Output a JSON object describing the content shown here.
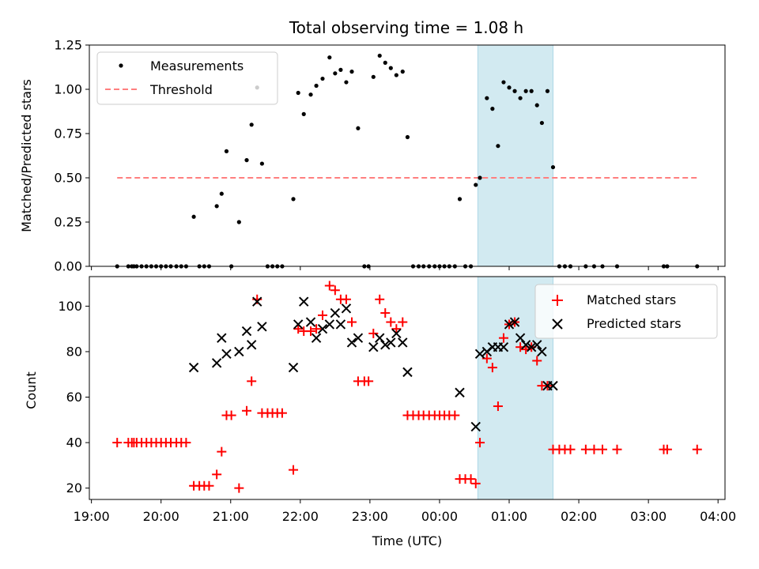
{
  "figure": {
    "title": "Total observing time = 1.08 h",
    "xlabel": "Time (UTC)",
    "xticks": [
      "19:00",
      "20:00",
      "21:00",
      "22:00",
      "23:00",
      "00:00",
      "01:00",
      "02:00",
      "03:00",
      "04:00"
    ]
  },
  "chart_data": [
    {
      "type": "scatter",
      "ylabel": "Matched/Predicted stars",
      "ylim": [
        0,
        1.25
      ],
      "yticks": [
        "0.00",
        "0.25",
        "0.50",
        "0.75",
        "1.00",
        "1.25"
      ],
      "x_unit": "hours after 19:00 UTC",
      "xlim": [
        -0.03,
        9.1
      ],
      "shaded_interval": [
        5.55,
        6.63
      ],
      "colors": {
        "shade": "#add8e6",
        "measurements": "#000000",
        "threshold": "#ff7f7f"
      },
      "legend": {
        "position": "upper-left",
        "entries": [
          "Measurements",
          "Threshold"
        ]
      },
      "threshold": {
        "name": "Threshold",
        "x": [
          0.37,
          8.7
        ],
        "y": 0.5
      },
      "series": [
        {
          "name": "Measurements",
          "points": [
            [
              0.37,
              0
            ],
            [
              0.53,
              0
            ],
            [
              0.58,
              0
            ],
            [
              0.61,
              0
            ],
            [
              0.65,
              0
            ],
            [
              0.72,
              0
            ],
            [
              0.79,
              0
            ],
            [
              0.86,
              0
            ],
            [
              0.93,
              0
            ],
            [
              1.0,
              0
            ],
            [
              1.07,
              0
            ],
            [
              1.14,
              0
            ],
            [
              1.22,
              0
            ],
            [
              1.29,
              0
            ],
            [
              1.36,
              0
            ],
            [
              1.47,
              0.28
            ],
            [
              1.55,
              0
            ],
            [
              1.62,
              0
            ],
            [
              1.69,
              0
            ],
            [
              1.8,
              0.34
            ],
            [
              1.87,
              0.41
            ],
            [
              1.94,
              0.65
            ],
            [
              2.01,
              0
            ],
            [
              2.12,
              0.25
            ],
            [
              2.23,
              0.6
            ],
            [
              2.3,
              0.8
            ],
            [
              2.38,
              1.01
            ],
            [
              2.45,
              0.58
            ],
            [
              2.53,
              0
            ],
            [
              2.6,
              0
            ],
            [
              2.67,
              0
            ],
            [
              2.74,
              0
            ],
            [
              2.9,
              0.38
            ],
            [
              2.97,
              0.98
            ],
            [
              3.05,
              0.86
            ],
            [
              3.15,
              0.97
            ],
            [
              3.23,
              1.02
            ],
            [
              3.32,
              1.06
            ],
            [
              3.42,
              1.18
            ],
            [
              3.5,
              1.09
            ],
            [
              3.58,
              1.11
            ],
            [
              3.66,
              1.04
            ],
            [
              3.74,
              1.1
            ],
            [
              3.83,
              0.78
            ],
            [
              3.92,
              0
            ],
            [
              3.98,
              0
            ],
            [
              4.05,
              1.07
            ],
            [
              4.14,
              1.19
            ],
            [
              4.22,
              1.15
            ],
            [
              4.3,
              1.12
            ],
            [
              4.38,
              1.08
            ],
            [
              4.47,
              1.1
            ],
            [
              4.54,
              0.73
            ],
            [
              4.62,
              0
            ],
            [
              4.7,
              0
            ],
            [
              4.77,
              0
            ],
            [
              4.85,
              0
            ],
            [
              4.93,
              0
            ],
            [
              5.0,
              0
            ],
            [
              5.07,
              0
            ],
            [
              5.14,
              0
            ],
            [
              5.22,
              0
            ],
            [
              5.29,
              0.38
            ],
            [
              5.37,
              0
            ],
            [
              5.45,
              0
            ],
            [
              5.52,
              0.46
            ],
            [
              5.58,
              0.5
            ],
            [
              5.68,
              0.95
            ],
            [
              5.76,
              0.89
            ],
            [
              5.84,
              0.68
            ],
            [
              5.92,
              1.04
            ],
            [
              6.0,
              1.01
            ],
            [
              6.08,
              0.99
            ],
            [
              6.16,
              0.95
            ],
            [
              6.24,
              0.99
            ],
            [
              6.32,
              0.99
            ],
            [
              6.4,
              0.91
            ],
            [
              6.47,
              0.81
            ],
            [
              6.55,
              0.99
            ],
            [
              6.63,
              0.56
            ],
            [
              6.72,
              0
            ],
            [
              6.8,
              0
            ],
            [
              6.88,
              0
            ],
            [
              7.1,
              0
            ],
            [
              7.22,
              0
            ],
            [
              7.34,
              0
            ],
            [
              7.55,
              0
            ],
            [
              8.22,
              0
            ],
            [
              8.27,
              0
            ],
            [
              8.7,
              0
            ]
          ]
        }
      ]
    },
    {
      "type": "scatter",
      "ylabel": "Count",
      "ylim": [
        15,
        113
      ],
      "yticks": [
        "20",
        "40",
        "60",
        "80",
        "100"
      ],
      "x_unit": "hours after 19:00 UTC",
      "xlim": [
        -0.03,
        9.1
      ],
      "shaded_interval": [
        5.55,
        6.63
      ],
      "colors": {
        "shade": "#add8e6",
        "matched": "#ff0000",
        "predicted": "#000000"
      },
      "legend": {
        "position": "upper-right",
        "entries": [
          "Matched stars",
          "Predicted stars"
        ]
      },
      "series": [
        {
          "name": "Matched stars",
          "marker": "+",
          "points": [
            [
              0.37,
              40
            ],
            [
              0.53,
              40
            ],
            [
              0.58,
              40
            ],
            [
              0.61,
              40
            ],
            [
              0.65,
              40
            ],
            [
              0.72,
              40
            ],
            [
              0.79,
              40
            ],
            [
              0.86,
              40
            ],
            [
              0.93,
              40
            ],
            [
              1.0,
              40
            ],
            [
              1.07,
              40
            ],
            [
              1.14,
              40
            ],
            [
              1.22,
              40
            ],
            [
              1.29,
              40
            ],
            [
              1.36,
              40
            ],
            [
              1.47,
              21
            ],
            [
              1.55,
              21
            ],
            [
              1.62,
              21
            ],
            [
              1.69,
              21
            ],
            [
              1.8,
              26
            ],
            [
              1.87,
              36
            ],
            [
              1.94,
              52
            ],
            [
              2.01,
              52
            ],
            [
              2.12,
              20
            ],
            [
              2.23,
              54
            ],
            [
              2.3,
              67
            ],
            [
              2.38,
              103
            ],
            [
              2.45,
              53
            ],
            [
              2.53,
              53
            ],
            [
              2.6,
              53
            ],
            [
              2.67,
              53
            ],
            [
              2.74,
              53
            ],
            [
              2.9,
              28
            ],
            [
              2.97,
              90
            ],
            [
              3.05,
              89
            ],
            [
              3.15,
              89
            ],
            [
              3.23,
              90
            ],
            [
              3.32,
              96
            ],
            [
              3.42,
              109
            ],
            [
              3.5,
              107
            ],
            [
              3.58,
              103
            ],
            [
              3.66,
              103
            ],
            [
              3.74,
              93
            ],
            [
              3.83,
              67
            ],
            [
              3.92,
              67
            ],
            [
              3.98,
              67
            ],
            [
              4.05,
              88
            ],
            [
              4.14,
              103
            ],
            [
              4.22,
              97
            ],
            [
              4.3,
              93
            ],
            [
              4.38,
              90
            ],
            [
              4.47,
              93
            ],
            [
              4.54,
              52
            ],
            [
              4.62,
              52
            ],
            [
              4.7,
              52
            ],
            [
              4.77,
              52
            ],
            [
              4.85,
              52
            ],
            [
              4.93,
              52
            ],
            [
              5.0,
              52
            ],
            [
              5.07,
              52
            ],
            [
              5.14,
              52
            ],
            [
              5.22,
              52
            ],
            [
              5.29,
              24
            ],
            [
              5.37,
              24
            ],
            [
              5.45,
              24
            ],
            [
              5.52,
              22
            ],
            [
              5.58,
              40
            ],
            [
              5.68,
              77
            ],
            [
              5.76,
              73
            ],
            [
              5.84,
              56
            ],
            [
              5.92,
              86
            ],
            [
              6.0,
              92
            ],
            [
              6.08,
              93
            ],
            [
              6.16,
              82
            ],
            [
              6.24,
              81
            ],
            [
              6.32,
              82
            ],
            [
              6.4,
              76
            ],
            [
              6.47,
              65
            ],
            [
              6.55,
              65
            ],
            [
              6.63,
              37
            ],
            [
              6.72,
              37
            ],
            [
              6.8,
              37
            ],
            [
              6.88,
              37
            ],
            [
              7.1,
              37
            ],
            [
              7.22,
              37
            ],
            [
              7.34,
              37
            ],
            [
              7.55,
              37
            ],
            [
              8.22,
              37
            ],
            [
              8.27,
              37
            ],
            [
              8.7,
              37
            ]
          ]
        },
        {
          "name": "Predicted stars",
          "marker": "x",
          "points": [
            [
              1.47,
              73
            ],
            [
              1.8,
              75
            ],
            [
              1.87,
              86
            ],
            [
              1.94,
              79
            ],
            [
              2.12,
              80
            ],
            [
              2.23,
              89
            ],
            [
              2.3,
              83
            ],
            [
              2.38,
              102
            ],
            [
              2.45,
              91
            ],
            [
              2.9,
              73
            ],
            [
              2.97,
              92
            ],
            [
              3.05,
              102
            ],
            [
              3.15,
              93
            ],
            [
              3.23,
              86
            ],
            [
              3.32,
              90
            ],
            [
              3.42,
              92
            ],
            [
              3.5,
              97
            ],
            [
              3.58,
              92
            ],
            [
              3.66,
              99
            ],
            [
              3.74,
              84
            ],
            [
              3.83,
              86
            ],
            [
              4.05,
              82
            ],
            [
              4.14,
              86
            ],
            [
              4.22,
              83
            ],
            [
              4.3,
              84
            ],
            [
              4.38,
              88
            ],
            [
              4.47,
              84
            ],
            [
              4.54,
              71
            ],
            [
              5.29,
              62
            ],
            [
              5.52,
              47
            ],
            [
              5.58,
              79
            ],
            [
              5.68,
              80
            ],
            [
              5.76,
              82
            ],
            [
              5.84,
              82
            ],
            [
              5.92,
              82
            ],
            [
              6.0,
              92
            ],
            [
              6.08,
              93
            ],
            [
              6.16,
              86
            ],
            [
              6.24,
              83
            ],
            [
              6.32,
              82
            ],
            [
              6.4,
              83
            ],
            [
              6.47,
              80
            ],
            [
              6.55,
              65
            ],
            [
              6.63,
              65
            ]
          ]
        }
      ]
    }
  ]
}
